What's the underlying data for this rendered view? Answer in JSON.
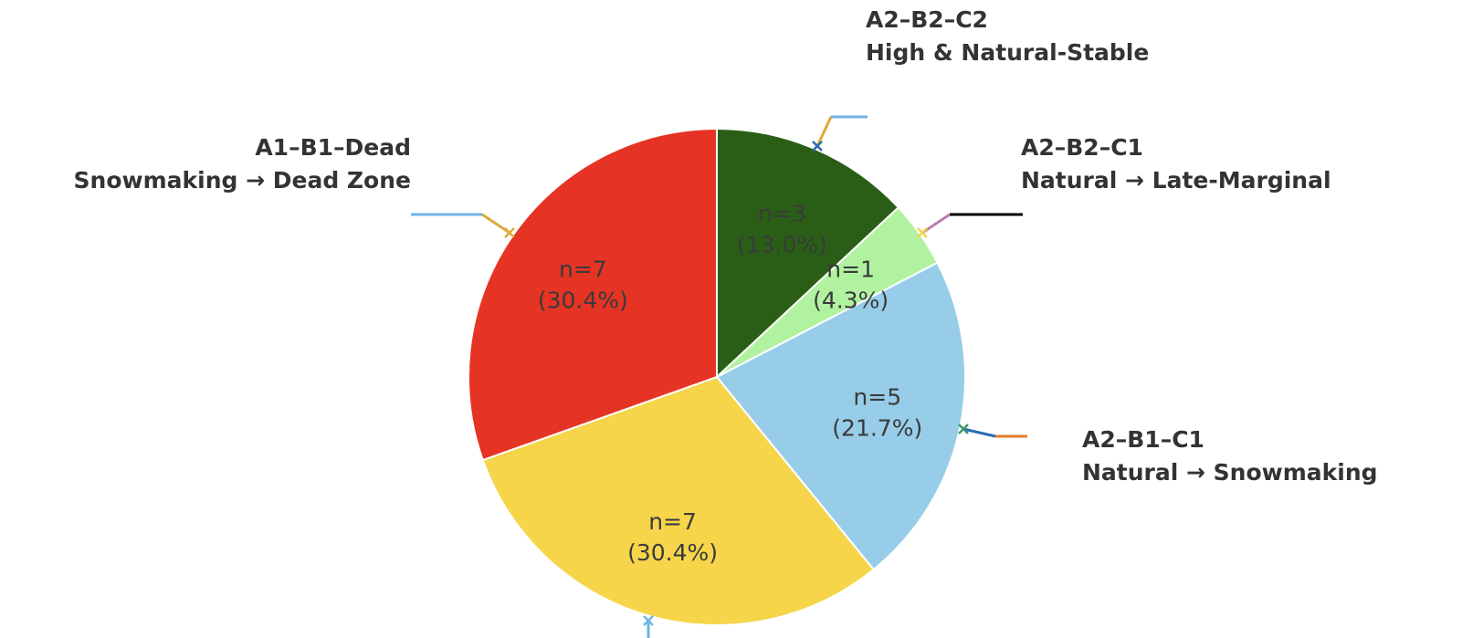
{
  "chart_data": {
    "type": "pie",
    "start_angle_deg": 90,
    "direction": "clockwise",
    "slices": [
      {
        "line1": "A2–B2–C2",
        "line2": "High & Natural-Stable",
        "count": 3,
        "value_label": "n=3",
        "pct_label": "(13.0%)",
        "color": "#2a5e16",
        "text_color": "#ffffff",
        "leader_inner": "#2b6cb0",
        "leader_mid": "#e0a93a",
        "leader_outer": "#6fb3e6"
      },
      {
        "line1": "A2–B2–C1",
        "line2": "Natural → Late-Marginal",
        "count": 1,
        "value_label": "n=1",
        "pct_label": "(4.3%)",
        "color": "#b0f2a0",
        "text_color": "#3a3a3a",
        "leader_inner": "#f2d54a",
        "leader_mid": "#b77fb0",
        "leader_outer": "#000000"
      },
      {
        "line1": "A2–B1–C1",
        "line2": "Natural → Snowmaking",
        "count": 5,
        "value_label": "n=5",
        "pct_label": "(21.7%)",
        "color": "#98cde9",
        "text_color": "#3a3a3a",
        "leader_inner": "#3a9a6a",
        "leader_mid": "#2b6cb0",
        "leader_outer": "#e07b2a"
      },
      {
        "line1": "",
        "line2": "",
        "count": 7,
        "value_label": "n=7",
        "pct_label": "(30.4%)",
        "color": "#f6d54a",
        "text_color": "#3a3a3a",
        "leader_inner": "#6fb3e6",
        "leader_mid": "#6fb3e6",
        "leader_outer": "#6fb3e6"
      },
      {
        "line1": "A1–B1–Dead",
        "line2": "Snowmaking → Dead Zone",
        "count": 7,
        "value_label": "n=7",
        "pct_label": "(30.4%)",
        "color": "#e53424",
        "text_color": "#3a3a3a",
        "leader_inner": "#e0a93a",
        "leader_mid": "#e0a93a",
        "leader_outer": "#6fb3e6"
      }
    ]
  }
}
